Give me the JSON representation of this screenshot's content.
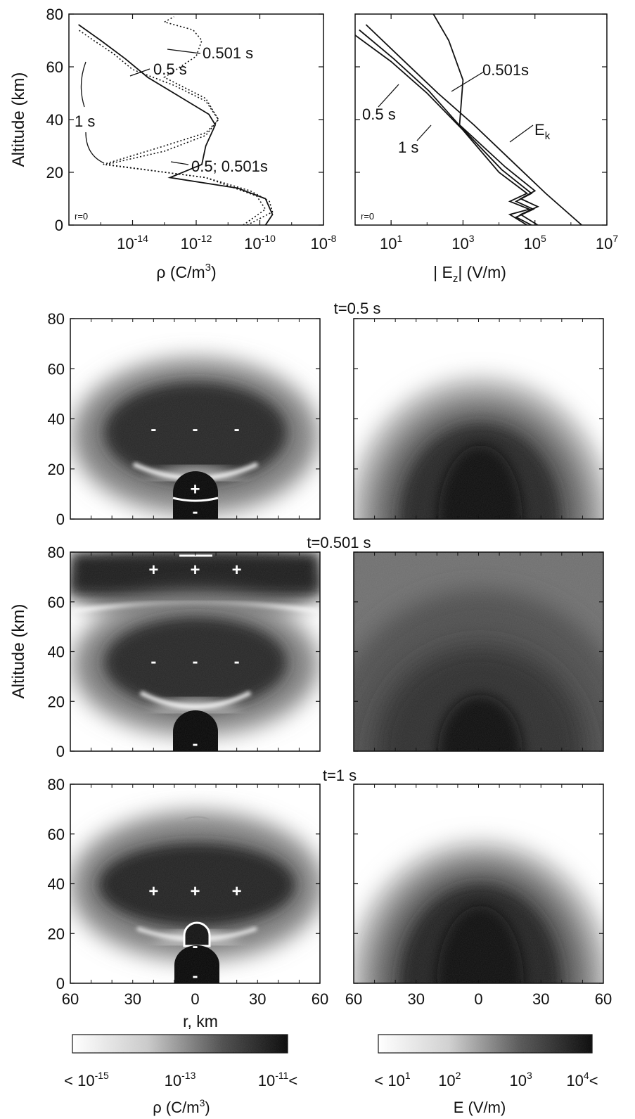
{
  "chart_data": [
    {
      "type": "line",
      "panel": "charge-density-profile",
      "xlabel": "ρ (C/m³)",
      "ylabel": "Altitude (km)",
      "xscale": "log",
      "xlim": [
        1e-16,
        1e-08
      ],
      "ylim": [
        0,
        80
      ],
      "xticks": [
        {
          "value": 1e-14,
          "base": "10",
          "exp": "-14"
        },
        {
          "value": 1e-12,
          "base": "10",
          "exp": "-12"
        },
        {
          "value": 1e-10,
          "base": "10",
          "exp": "-10"
        },
        {
          "value": 1e-08,
          "base": "10",
          "exp": "-8"
        }
      ],
      "yticks": [
        0,
        20,
        40,
        60,
        80
      ],
      "corner_label": "r=0",
      "series": [
        {
          "name": "0.5 s",
          "dashed": false,
          "x": [
            1.5e-10,
            2.5e-10,
            1.5e-10,
            2e-11,
            1.5e-13,
            1.5e-12,
            2e-12,
            4e-12,
            2.5e-12,
            2e-13,
            3e-14,
            6e-15,
            1e-15,
            2e-16
          ],
          "y": [
            0,
            4,
            10,
            14,
            18,
            23,
            30,
            38,
            42,
            50,
            56,
            63,
            70,
            76
          ]
        },
        {
          "name": "0.501 s",
          "dashed": true,
          "x": [
            3e-11,
            1.5e-10,
            8e-11,
            2e-12,
            1.2e-15,
            1e-13,
            2e-12,
            5e-12,
            2e-12,
            1e-13,
            1e-12,
            1.5e-12,
            8e-13,
            1e-13,
            2e-13
          ],
          "y": [
            0,
            6,
            11,
            18,
            23,
            30,
            35,
            40,
            48,
            56,
            64,
            70,
            74,
            77,
            79
          ]
        },
        {
          "name": "1 s",
          "dashed": true,
          "x": [
            4e-11,
            2.5e-10,
            2e-10,
            5e-11,
            2e-12,
            1.5e-15,
            1e-13,
            2e-12,
            5e-12,
            2e-12,
            2e-13,
            1e-14,
            2.5e-15,
            6e-16,
            2e-16
          ],
          "y": [
            0,
            5,
            9,
            13,
            18,
            23,
            28,
            34,
            40,
            47,
            53,
            59,
            65,
            70,
            74
          ]
        }
      ],
      "annotations": [
        "0.501 s",
        "0.5 s",
        "1 s",
        "0.5; 0.501s"
      ]
    },
    {
      "type": "line",
      "panel": "field-profile",
      "xlabel": "| E",
      "xlabel_sub": "z",
      "xlabel_tail": "| (V/m)",
      "ylabel": "",
      "xscale": "log",
      "xlim": [
        1,
        10000000.0
      ],
      "ylim": [
        0,
        80
      ],
      "xticks": [
        {
          "value": 10,
          "base": "10",
          "exp": "1"
        },
        {
          "value": 1000,
          "base": "10",
          "exp": "3"
        },
        {
          "value": 100000,
          "base": "10",
          "exp": "5"
        },
        {
          "value": 10000000,
          "base": "10",
          "exp": "7"
        }
      ],
      "corner_label": "r=0",
      "series": [
        {
          "name": "E_k",
          "dashed": false,
          "x": [
            2000000.0,
            200000.0,
            20000.0,
            2000.0,
            200,
            20,
            2
          ],
          "y": [
            0,
            12,
            25,
            38,
            50,
            63,
            76
          ]
        },
        {
          "name": "0.5 s",
          "dashed": false,
          "x": [
            60000.0,
            20000.0,
            70000.0,
            20000.0,
            60000.0,
            10000.0,
            1000.0,
            100,
            10,
            1
          ],
          "y": [
            0,
            4,
            6,
            9,
            12,
            20,
            36,
            50,
            62,
            72
          ]
        },
        {
          "name": "0.501 s",
          "dashed": false,
          "x": [
            120000.0,
            40000.0,
            120000.0,
            40000.0,
            100000.0,
            15000.0,
            800,
            1000,
            400,
            150
          ],
          "y": [
            0,
            4,
            7,
            10,
            13,
            22,
            38,
            55,
            70,
            80
          ]
        },
        {
          "name": "1 s",
          "dashed": false,
          "x": [
            80000.0,
            30000.0,
            90000.0,
            30000.0,
            80000.0,
            12000.0,
            900,
            110,
            12,
            1.3
          ],
          "y": [
            0,
            3,
            6,
            9,
            12,
            21,
            37,
            51,
            63,
            74
          ]
        }
      ],
      "annotations": [
        "0.501s",
        "0.5 s",
        "1 s",
        "E",
        "k"
      ]
    },
    {
      "type": "heatmap",
      "panel": "charge-density-maps",
      "xlabel": "r, km",
      "ylabel": "Altitude (km)",
      "xticks": [
        "60",
        "30",
        "0",
        "30",
        "60"
      ],
      "yticks": [
        0,
        20,
        40,
        60,
        80
      ],
      "xlim": [
        -60,
        60
      ],
      "ylim": [
        0,
        80
      ],
      "times": [
        "t=0.5 s",
        "t=0.501 s",
        "t=1 s"
      ],
      "signs": [
        [
          {
            "label": "-",
            "r": -20,
            "z": 36
          },
          {
            "label": "-",
            "r": 0,
            "z": 36
          },
          {
            "label": "-",
            "r": 20,
            "z": 36
          },
          {
            "label": "+",
            "r": 0,
            "z": 12
          },
          {
            "label": "-",
            "r": 0,
            "z": 3
          }
        ],
        [
          {
            "label": "+",
            "r": -20,
            "z": 73
          },
          {
            "label": "+",
            "r": 0,
            "z": 73
          },
          {
            "label": "+",
            "r": 20,
            "z": 73
          },
          {
            "label": "-",
            "r": -20,
            "z": 36
          },
          {
            "label": "-",
            "r": 0,
            "z": 36
          },
          {
            "label": "-",
            "r": 20,
            "z": 36
          },
          {
            "label": "-",
            "r": 0,
            "z": 3
          }
        ],
        [
          {
            "label": "+",
            "r": -20,
            "z": 37
          },
          {
            "label": "+",
            "r": 0,
            "z": 37
          },
          {
            "label": "+",
            "r": 20,
            "z": 37
          },
          {
            "label": "-",
            "r": 0,
            "z": 15
          },
          {
            "label": "-",
            "r": 0,
            "z": 3
          }
        ]
      ],
      "colorbar": {
        "label": "ρ (C/m³)",
        "ticks": [
          {
            "prefix": "< ",
            "base": "10",
            "exp": "-15",
            "suffix": ""
          },
          {
            "prefix": "",
            "base": "10",
            "exp": "-13",
            "suffix": ""
          },
          {
            "prefix": "",
            "base": "10",
            "exp": "-11",
            "suffix": "<"
          }
        ]
      }
    },
    {
      "type": "heatmap",
      "panel": "field-maps",
      "xticks": [
        "60",
        "30",
        "0",
        "30",
        "60"
      ],
      "xlim": [
        -60,
        60
      ],
      "ylim": [
        0,
        80
      ],
      "colorbar": {
        "label": "E (V/m)",
        "ticks": [
          {
            "prefix": "< ",
            "base": "10",
            "exp": "1",
            "suffix": ""
          },
          {
            "prefix": "",
            "base": "10",
            "exp": "2",
            "suffix": ""
          },
          {
            "prefix": "",
            "base": "10",
            "exp": "3",
            "suffix": ""
          },
          {
            "prefix": "",
            "base": "10",
            "exp": "4",
            "suffix": "<"
          }
        ]
      }
    }
  ]
}
